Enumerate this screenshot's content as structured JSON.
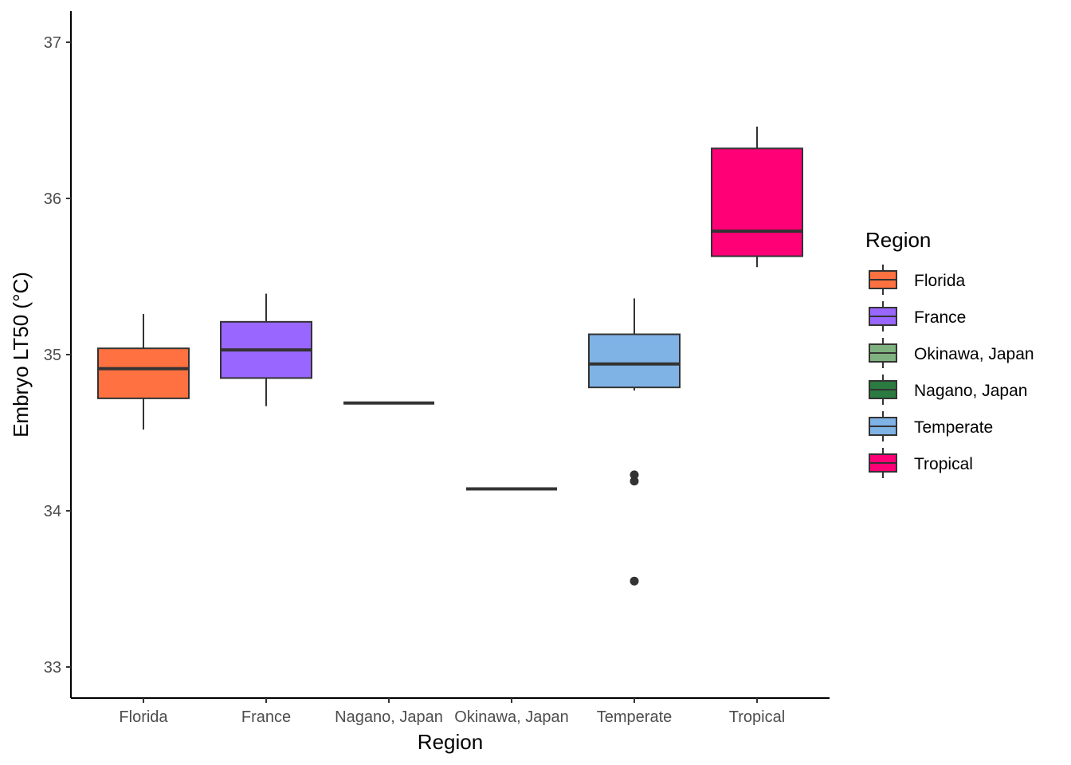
{
  "chart_data": {
    "type": "boxplot",
    "xlabel": "Region",
    "ylabel": "Embryo LT50 (°C)",
    "ylim": [
      32.8,
      37.2
    ],
    "yticks": [
      33,
      34,
      35,
      36,
      37
    ],
    "grid": false,
    "legend": {
      "title": "Region",
      "position": "right",
      "entries": [
        {
          "label": "Florida",
          "color": "#FF7140"
        },
        {
          "label": "France",
          "color": "#9966FF"
        },
        {
          "label": "Okinawa, Japan",
          "color": "#7FB27F"
        },
        {
          "label": "Nagano, Japan",
          "color": "#2B7A40"
        },
        {
          "label": "Temperate",
          "color": "#7FB2E5"
        },
        {
          "label": "Tropical",
          "color": "#FF0077"
        }
      ]
    },
    "categories": [
      "Florida",
      "France",
      "Nagano, Japan",
      "Okinawa, Japan",
      "Temperate",
      "Tropical"
    ],
    "boxes": [
      {
        "category": "Florida",
        "color": "#FF7140",
        "whisker_low": 34.52,
        "q1": 34.72,
        "median": 34.91,
        "q3": 35.04,
        "whisker_high": 35.26,
        "outliers": []
      },
      {
        "category": "France",
        "color": "#9966FF",
        "whisker_low": 34.67,
        "q1": 34.85,
        "median": 35.03,
        "q3": 35.21,
        "whisker_high": 35.39,
        "outliers": []
      },
      {
        "category": "Nagano, Japan",
        "color": "#2B7A40",
        "whisker_low": 34.69,
        "q1": 34.69,
        "median": 34.69,
        "q3": 34.69,
        "whisker_high": 34.69,
        "outliers": []
      },
      {
        "category": "Okinawa, Japan",
        "color": "#7FB27F",
        "whisker_low": 34.14,
        "q1": 34.14,
        "median": 34.14,
        "q3": 34.14,
        "whisker_high": 34.14,
        "outliers": []
      },
      {
        "category": "Temperate",
        "color": "#7FB2E5",
        "whisker_low": 34.77,
        "q1": 34.79,
        "median": 34.94,
        "q3": 35.13,
        "whisker_high": 35.36,
        "outliers": [
          34.23,
          34.19,
          33.55
        ]
      },
      {
        "category": "Tropical",
        "color": "#FF0077",
        "whisker_low": 35.56,
        "q1": 35.63,
        "median": 35.79,
        "q3": 36.32,
        "whisker_high": 36.46,
        "outliers": []
      }
    ]
  }
}
